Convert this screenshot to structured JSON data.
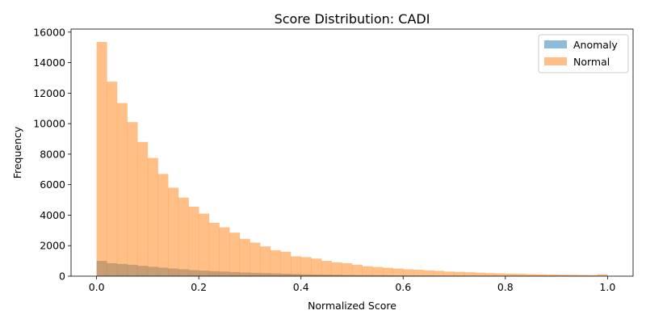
{
  "chart_data": {
    "type": "histogram",
    "title": "Score Distribution: CADI",
    "xlabel": "Normalized Score",
    "ylabel": "Frequency",
    "xlim": [
      -0.05,
      1.05
    ],
    "ylim": [
      0,
      16200
    ],
    "xticks": [
      "0.0",
      "0.2",
      "0.4",
      "0.6",
      "0.8",
      "1.0"
    ],
    "yticks": [
      "0",
      "2000",
      "4000",
      "6000",
      "8000",
      "10000",
      "12000",
      "14000",
      "16000"
    ],
    "bin_width": 0.02,
    "legend_position": "top-right",
    "series": [
      {
        "name": "Anomaly",
        "color": "#1f77b4",
        "alpha": 0.5,
        "values": [
          1000,
          850,
          800,
          750,
          680,
          620,
          560,
          500,
          450,
          400,
          360,
          330,
          300,
          270,
          240,
          220,
          200,
          180,
          160,
          140,
          120,
          110,
          100,
          90,
          80,
          70,
          65,
          60,
          55,
          50,
          45,
          40,
          38,
          35,
          32,
          30,
          28,
          26,
          24,
          22,
          20,
          18,
          17,
          16,
          15,
          14,
          13,
          12,
          11,
          10
        ]
      },
      {
        "name": "Normal",
        "color": "#ff7f0e",
        "alpha": 0.5,
        "values": [
          15350,
          12750,
          11350,
          10100,
          8800,
          7750,
          6700,
          5800,
          5150,
          4550,
          4100,
          3500,
          3200,
          2850,
          2450,
          2200,
          1950,
          1700,
          1600,
          1300,
          1250,
          1150,
          1000,
          900,
          850,
          750,
          650,
          600,
          550,
          500,
          450,
          420,
          380,
          350,
          300,
          280,
          260,
          230,
          200,
          180,
          160,
          150,
          130,
          120,
          110,
          100,
          90,
          80,
          70,
          120
        ]
      }
    ]
  }
}
